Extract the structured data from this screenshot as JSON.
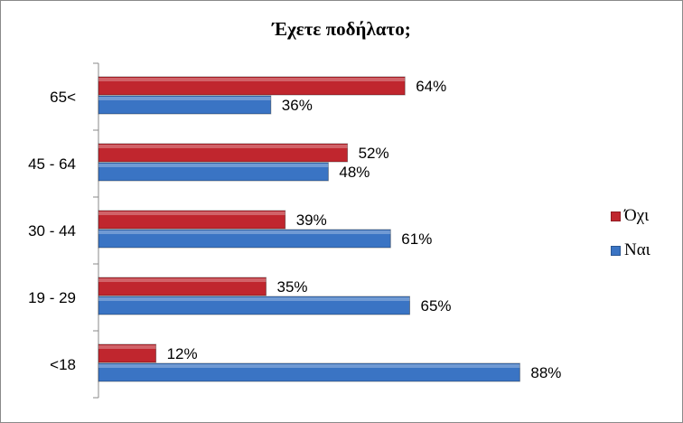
{
  "chart_data": {
    "type": "bar",
    "orientation": "horizontal",
    "title": "Έχετε ποδήλατο;",
    "categories": [
      "65<",
      "45 - 64",
      "30 - 44",
      "19 - 29",
      "<18"
    ],
    "series": [
      {
        "name": "Όχι",
        "values": [
          64,
          52,
          39,
          35,
          12
        ],
        "color": "#c0262e",
        "labels": [
          "64%",
          "52%",
          "39%",
          "35%",
          "12%"
        ]
      },
      {
        "name": "Ναι",
        "values": [
          36,
          48,
          61,
          65,
          88
        ],
        "color": "#3a74c4",
        "labels": [
          "36%",
          "48%",
          "61%",
          "65%",
          "88%"
        ]
      }
    ],
    "xlim": [
      0,
      100
    ],
    "grid": false,
    "legend": "right",
    "value_format": "percent"
  }
}
